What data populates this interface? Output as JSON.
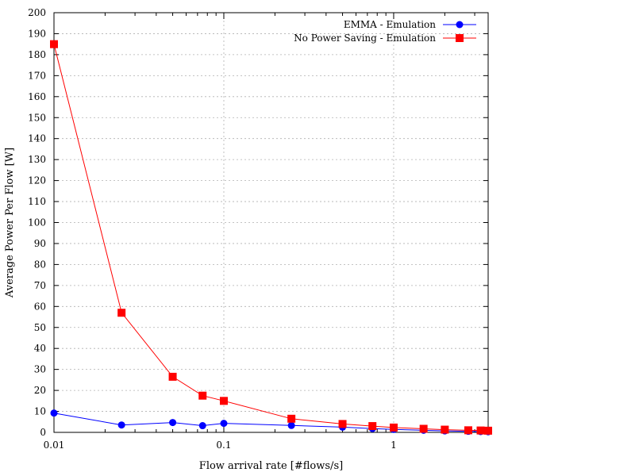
{
  "chart_data": {
    "type": "line",
    "xlabel": "Flow arrival rate [#flows/s]",
    "ylabel": "Average Power Per Flow [W]",
    "xscale": "log",
    "xlim": [
      0.01,
      3.6
    ],
    "ylim": [
      0,
      200
    ],
    "yticks": [
      0,
      10,
      20,
      30,
      40,
      50,
      60,
      70,
      80,
      90,
      100,
      110,
      120,
      130,
      140,
      150,
      160,
      170,
      180,
      190,
      200
    ],
    "xticks_major": [
      0.01,
      0.1,
      1
    ],
    "xtick_labels": [
      "0.01",
      "0.1",
      "1"
    ],
    "grid": true,
    "legend_position": "top-right",
    "series": [
      {
        "name": "EMMA - Emulation",
        "color": "#0000ff",
        "marker": "circle",
        "x": [
          0.01,
          0.025,
          0.05,
          0.075,
          0.1,
          0.25,
          0.5,
          0.75,
          1,
          1.5,
          2,
          2.75,
          3.25,
          3.6
        ],
        "y": [
          9.2,
          3.5,
          4.7,
          3.2,
          4.3,
          3.3,
          2.5,
          1.8,
          1.4,
          1.0,
          0.7,
          0.5,
          0.4,
          0.3
        ]
      },
      {
        "name": "No Power Saving - Emulation",
        "color": "#ff0000",
        "marker": "square",
        "x": [
          0.01,
          0.025,
          0.05,
          0.075,
          0.1,
          0.25,
          0.5,
          0.75,
          1,
          1.5,
          2,
          2.75,
          3.25,
          3.6
        ],
        "y": [
          185,
          57,
          26.5,
          17.5,
          15,
          6.5,
          4,
          3,
          2.3,
          1.7,
          1.3,
          1.0,
          0.9,
          0.8
        ]
      }
    ]
  }
}
